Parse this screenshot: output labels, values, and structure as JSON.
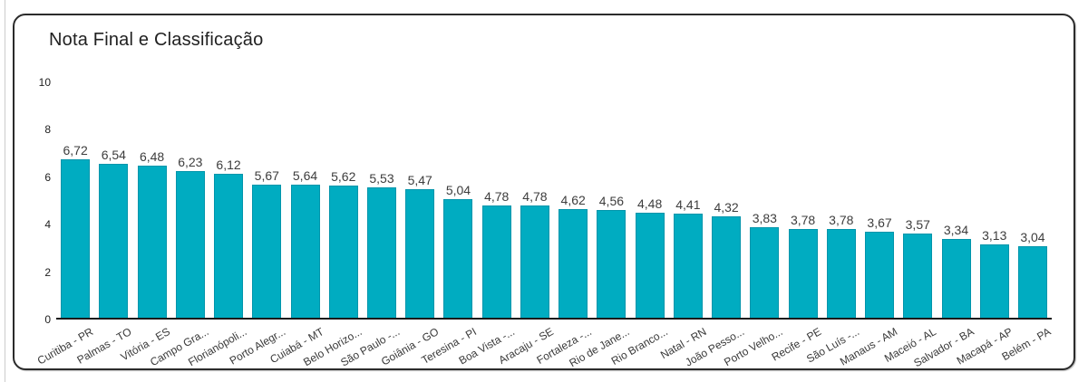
{
  "title": "Nota Final e Classificação",
  "colors": {
    "bar_fill": "#00ACC1",
    "bar_border": "#0095AB",
    "axis_line": "#1a1a1a",
    "card_border": "#2b2b2b",
    "text": "#3d3d3d"
  },
  "chart_data": {
    "type": "bar",
    "title": "Nota Final e Classificação",
    "categories": [
      "Curitiba - PR",
      "Palmas - TO",
      "Vitória - ES",
      "Campo Gra...",
      "Florianópoli...",
      "Porto Alegr...",
      "Cuiabá - MT",
      "Belo Horizo...",
      "São Paulo -...",
      "Goiânia - GO",
      "Teresina - PI",
      "Boa Vista -...",
      "Aracaju - SE",
      "Fortaleza -...",
      "Rio de Jane...",
      "Rio Branco...",
      "Natal - RN",
      "João Pesso...",
      "Porto Velho...",
      "Recife - PE",
      "São Luís -...",
      "Manaus - AM",
      "Maceió - AL",
      "Salvador - BA",
      "Macapá - AP",
      "Belém - PA"
    ],
    "values": [
      6.72,
      6.54,
      6.48,
      6.23,
      6.12,
      5.67,
      5.64,
      5.62,
      5.53,
      5.47,
      5.04,
      4.78,
      4.78,
      4.62,
      4.56,
      4.48,
      4.41,
      4.32,
      3.83,
      3.78,
      3.78,
      3.67,
      3.57,
      3.34,
      3.13,
      3.04
    ],
    "value_labels": [
      "6,72",
      "6,54",
      "6,48",
      "6,23",
      "6,12",
      "5,67",
      "5,64",
      "5,62",
      "5,53",
      "5,47",
      "5,04",
      "4,78",
      "4,78",
      "4,62",
      "4,56",
      "4,48",
      "4,41",
      "4,32",
      "3,83",
      "3,78",
      "3,78",
      "3,67",
      "3,57",
      "3,34",
      "3,13",
      "3,04"
    ],
    "xlabel": "",
    "ylabel": "",
    "ylim": [
      0,
      10
    ],
    "y_ticks": [
      0,
      2,
      4,
      6,
      8,
      10
    ],
    "y_tick_labels": [
      "0",
      "2",
      "4",
      "6",
      "8",
      "10"
    ],
    "grid": false,
    "legend": "none",
    "bar_color": "#00ACC1"
  }
}
